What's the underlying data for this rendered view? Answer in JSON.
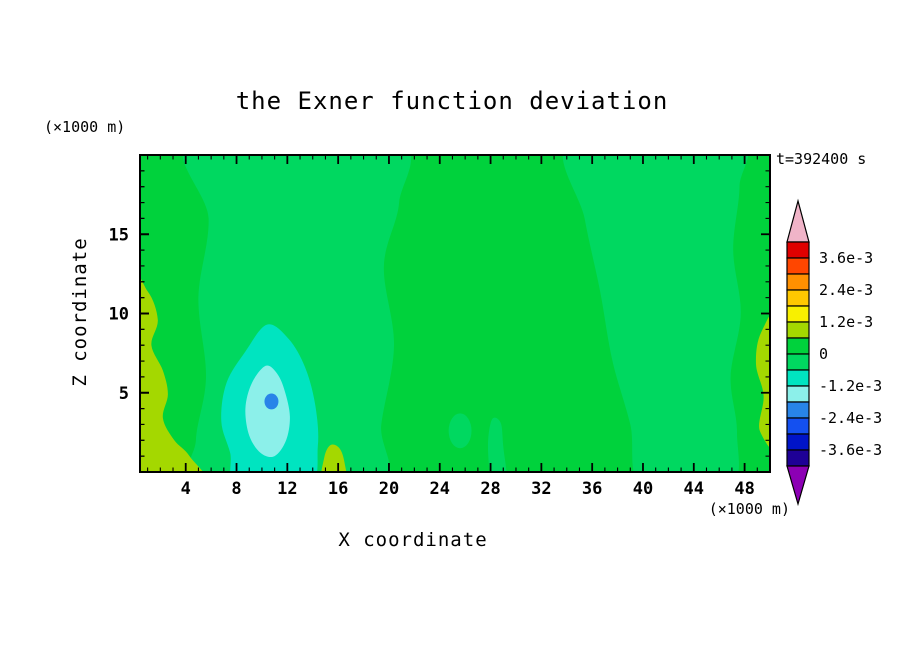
{
  "figure": {
    "background_color": "#ffffff"
  },
  "chart_data": {
    "type": "heatmap",
    "title": "the Exner function deviation",
    "timestamp": "t=392400 s",
    "xlabel": "X coordinate",
    "ylabel": "Z coordinate",
    "x_unit": "(×1000 m)",
    "y_unit": "(×1000 m)",
    "xlim": [
      0.4,
      50
    ],
    "ylim": [
      0,
      20
    ],
    "x_major_ticks": [
      4,
      8,
      12,
      16,
      20,
      24,
      28,
      32,
      36,
      40,
      44,
      48
    ],
    "x_minor_step": 1,
    "y_major_ticks": [
      5,
      10,
      15
    ],
    "y_minor_step": 1,
    "contour_interval": 0.0006,
    "base_color": "#00d23c",
    "base_band": "0 .. 0.6e-3",
    "regions": [
      {
        "name": "mid left negative band",
        "band": "-0.6e-3 .. 0",
        "color": "#00d860",
        "type": "poly",
        "points": [
          [
            4.6,
            21
          ],
          [
            5.8,
            16
          ],
          [
            5.0,
            11
          ],
          [
            5.6,
            6
          ],
          [
            4.8,
            2
          ],
          [
            5.2,
            -1
          ],
          [
            19.0,
            -1
          ],
          [
            19.4,
            3
          ],
          [
            20.4,
            8
          ],
          [
            19.6,
            13
          ],
          [
            20.8,
            17
          ],
          [
            20.4,
            21
          ]
        ]
      },
      {
        "name": "mid right negative band",
        "band": "-0.6e-3 .. 0",
        "color": "#00d860",
        "type": "poly",
        "points": [
          [
            34.4,
            21
          ],
          [
            35.4,
            16
          ],
          [
            36.6,
            11.5
          ],
          [
            37.6,
            7
          ],
          [
            39.0,
            3
          ],
          [
            40.0,
            -1
          ],
          [
            46.8,
            -1
          ],
          [
            47.4,
            2.5
          ],
          [
            46.9,
            6
          ],
          [
            47.7,
            10
          ],
          [
            47.1,
            14
          ],
          [
            47.6,
            18
          ],
          [
            47.2,
            21
          ]
        ]
      },
      {
        "name": "small negative pocket",
        "band": "-0.6e-3 .. 0",
        "color": "#00d860",
        "type": "ellipse",
        "cx": 25.6,
        "cy": 2.6,
        "rx": 0.9,
        "ry": 1.1
      },
      {
        "name": "narrow negative sliver",
        "band": "-0.6e-3 .. 0",
        "color": "#00d860",
        "type": "poly",
        "points": [
          [
            28.1,
            3.3
          ],
          [
            27.8,
            1.5
          ],
          [
            28.2,
            -1
          ],
          [
            29.3,
            -1
          ],
          [
            29.0,
            1.6
          ],
          [
            28.8,
            3.1
          ]
        ]
      },
      {
        "name": "left edge positive strip",
        "band": "0.6e-3 .. 1.2e-3",
        "color": "#a4d800",
        "type": "poly",
        "points": [
          [
            -1,
            12.6
          ],
          [
            1.0,
            11.4
          ],
          [
            1.8,
            9.6
          ],
          [
            1.3,
            8.0
          ],
          [
            2.2,
            6.4
          ],
          [
            2.6,
            4.9
          ],
          [
            2.2,
            3.4
          ],
          [
            3.1,
            2.0
          ],
          [
            4.3,
            1.0
          ],
          [
            5.6,
            -1
          ],
          [
            -1,
            -1
          ]
        ]
      },
      {
        "name": "bottom positive bump",
        "band": "0.6e-3 .. 1.2e-3",
        "color": "#a4d800",
        "type": "poly",
        "points": [
          [
            14.7,
            -1
          ],
          [
            14.9,
            0.9
          ],
          [
            15.4,
            1.7
          ],
          [
            16.1,
            1.5
          ],
          [
            16.5,
            0.6
          ],
          [
            16.6,
            -1
          ]
        ]
      },
      {
        "name": "right edge positive strip",
        "band": "0.6e-3 .. 1.2e-3",
        "color": "#a4d800",
        "type": "poly",
        "points": [
          [
            51,
            1.6
          ],
          [
            49.2,
            2.6
          ],
          [
            49.5,
            4.8
          ],
          [
            48.9,
            6.8
          ],
          [
            49.3,
            8.8
          ],
          [
            51,
            10.2
          ]
        ]
      },
      {
        "name": "negative cell outer",
        "band": "-1.2e-3 .. -0.6e-3",
        "color": "#00e4c0",
        "type": "poly",
        "points": [
          [
            10.4,
            9.3
          ],
          [
            8.7,
            7.6
          ],
          [
            7.2,
            5.6
          ],
          [
            6.8,
            3.2
          ],
          [
            7.5,
            1.2
          ],
          [
            8.1,
            -1
          ],
          [
            13.6,
            -1
          ],
          [
            14.4,
            1.6
          ],
          [
            14.2,
            4.2
          ],
          [
            13.4,
            6.6
          ],
          [
            12.1,
            8.4
          ]
        ]
      },
      {
        "name": "negative cell inner",
        "band": "-1.8e-3 .. -1.2e-3",
        "color": "#8cf0ea",
        "type": "poly",
        "points": [
          [
            10.3,
            6.7
          ],
          [
            9.2,
            5.6
          ],
          [
            8.7,
            4.0
          ],
          [
            9.0,
            2.3
          ],
          [
            9.9,
            1.2
          ],
          [
            11.0,
            1.0
          ],
          [
            11.9,
            2.0
          ],
          [
            12.2,
            3.5
          ],
          [
            11.8,
            5.1
          ],
          [
            11.2,
            6.2
          ]
        ]
      },
      {
        "name": "negative cell core",
        "band": "-2.4e-3 .. -1.8e-3",
        "color": "#2884e8",
        "type": "ellipse",
        "cx": 10.75,
        "cy": 4.45,
        "rx": 0.55,
        "ry": 0.5
      }
    ],
    "colorbar": {
      "labels": [
        "3.6e-3",
        "2.4e-3",
        "1.2e-3",
        "0",
        "-1.2e-3",
        "-2.4e-3",
        "-3.6e-3"
      ],
      "label_values": [
        0.0036,
        0.0024,
        0.0012,
        0,
        -0.0012,
        -0.0024,
        -0.0036
      ],
      "value_max": 0.0042,
      "value_min": -0.0042,
      "colors_top_to_bottom": [
        "#e00000",
        "#ff4600",
        "#ff9000",
        "#ffc800",
        "#f8f000",
        "#a4d800",
        "#00d23c",
        "#00d860",
        "#00e4c0",
        "#8cf0ea",
        "#2884e8",
        "#1450f0",
        "#0014c8",
        "#1e0096"
      ],
      "arrow_top_color": "#f0b4c8",
      "arrow_bottom_color": "#8c00b4"
    }
  }
}
